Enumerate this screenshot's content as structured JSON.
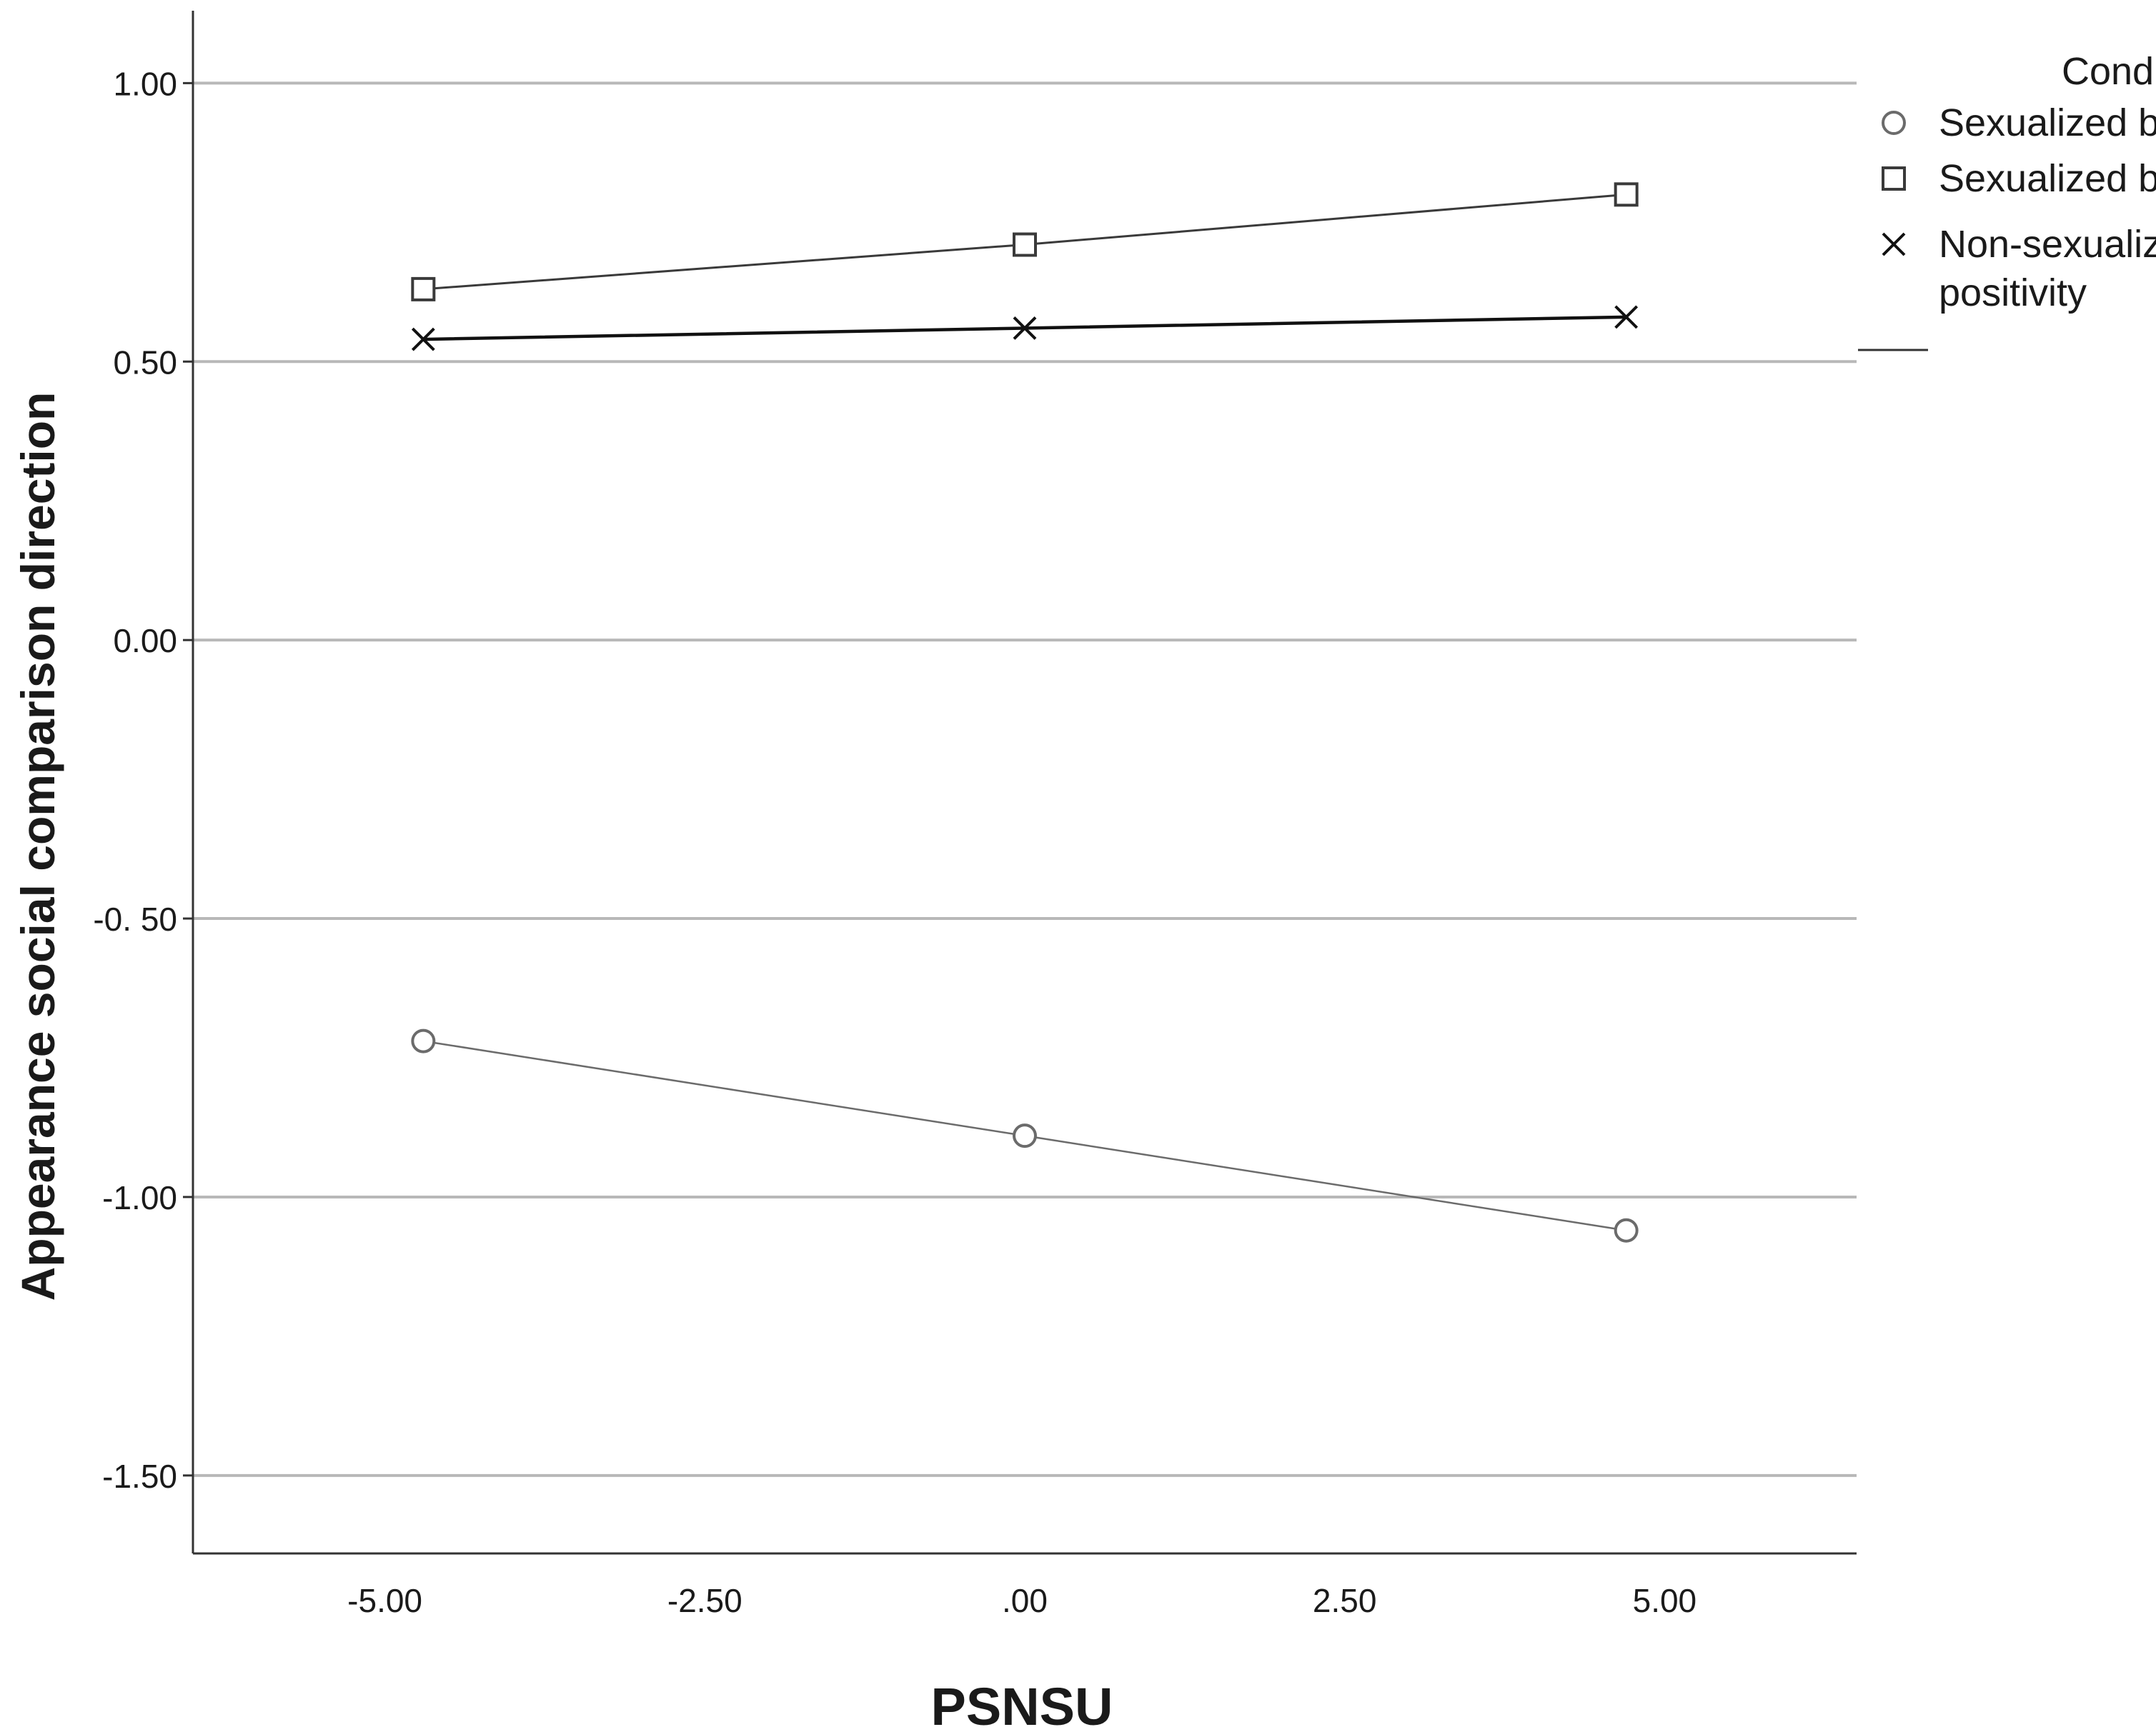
{
  "chart_data": {
    "type": "line",
    "title": "",
    "xlabel": "PSNSU",
    "ylabel": "Appearance social comparison direction",
    "xlim": [
      -6.5,
      6.5
    ],
    "ylim": [
      -1.64,
      1.13
    ],
    "x_ticks": [
      -5,
      -2.5,
      0,
      2.5,
      5
    ],
    "x_tick_labels": [
      "-5.00",
      "-2.50",
      ".00",
      "2.50",
      "5.00"
    ],
    "y_ticks": [
      1,
      0.5,
      0,
      -0.5,
      -1,
      -1.5
    ],
    "y_tick_labels": [
      "1.00",
      "0.50",
      "0.00",
      "-0. 50",
      "-1.00",
      "-1.50"
    ],
    "grid": "horizontal",
    "legend_position": "top-right",
    "legend_title": "Cond",
    "series": [
      {
        "name": "Sexualized b",
        "marker": "circle",
        "color": "#6b6b6b",
        "x": [
          -4.7,
          0,
          4.7
        ],
        "y": [
          -0.72,
          -0.89,
          -1.06
        ]
      },
      {
        "name": "Sexualized b",
        "marker": "square",
        "color": "#3a3a3a",
        "x": [
          -4.7,
          0,
          4.7
        ],
        "y": [
          0.63,
          0.71,
          0.8
        ]
      },
      {
        "name": "Non-sexualiz positivity",
        "name_lines": [
          "Non-sexualiz",
          "positivity"
        ],
        "marker": "x",
        "color": "#111111",
        "x": [
          -4.7,
          0,
          4.7
        ],
        "y": [
          0.54,
          0.56,
          0.58
        ]
      }
    ]
  }
}
